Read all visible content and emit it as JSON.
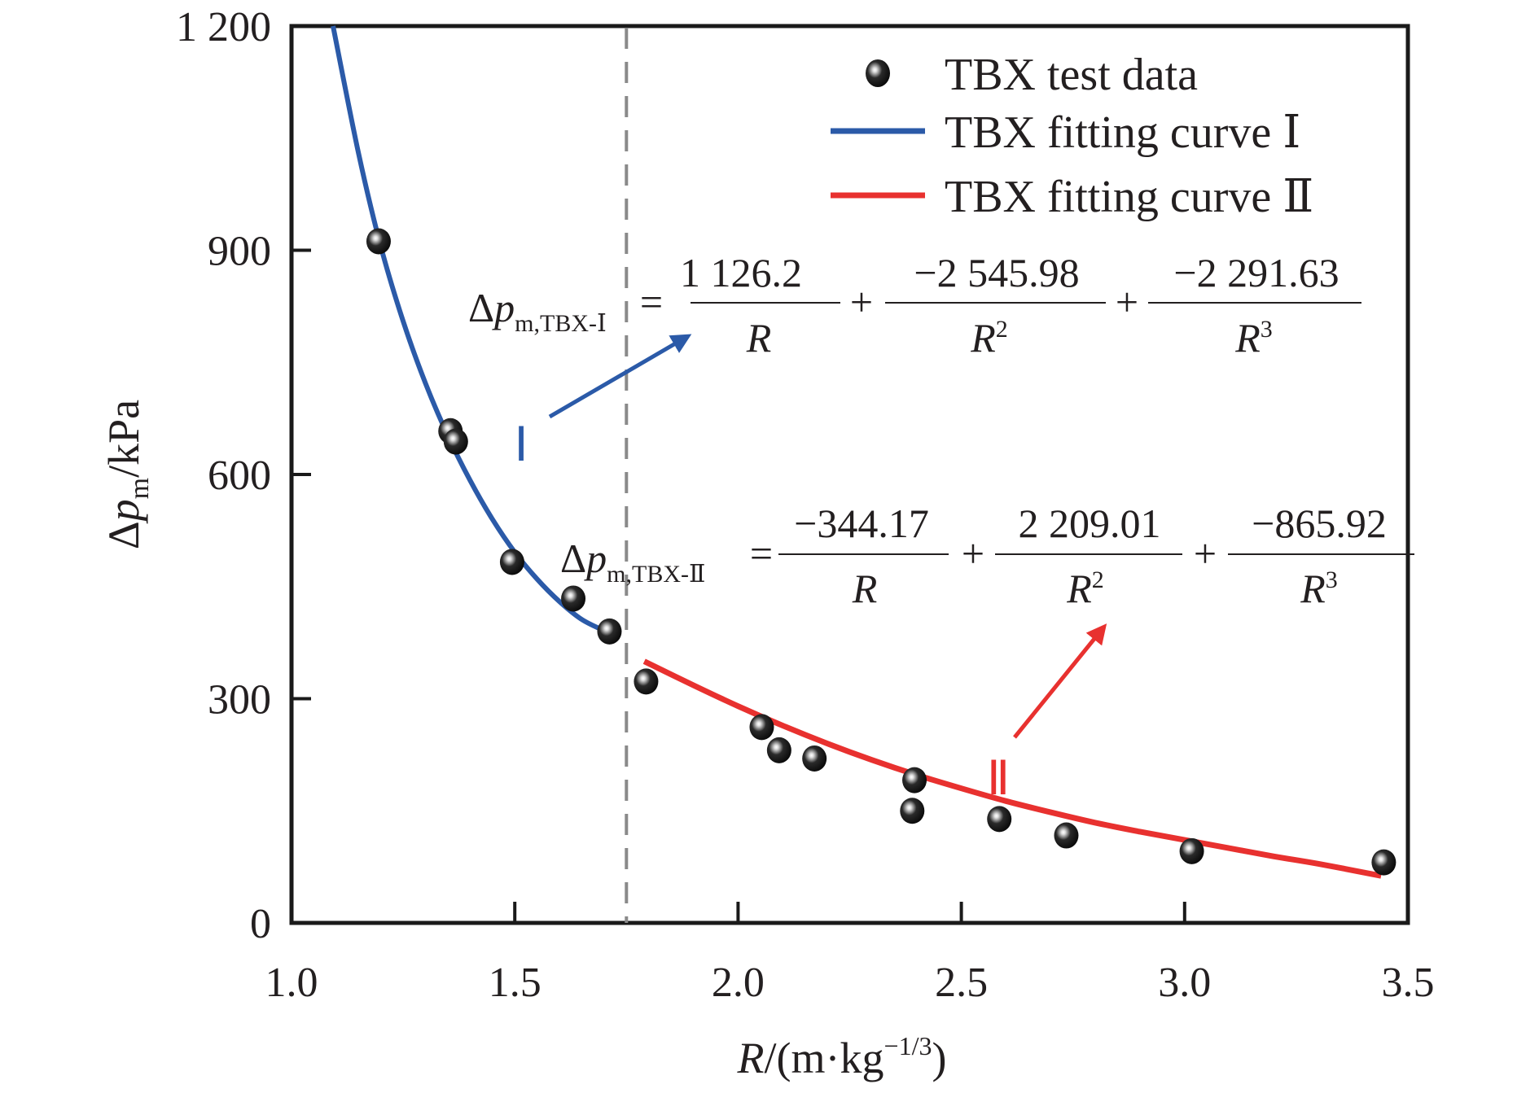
{
  "chart_data": {
    "type": "scatter",
    "title": "",
    "xlabel": "R/(m·kg−1/3)",
    "xlabel_parts": {
      "var": "R",
      "unit_prefix": "/(m·kg",
      "exponent": "−1/3",
      "close": ")"
    },
    "ylabel": "Δp_m/kPa",
    "ylabel_parts": {
      "delta": "Δ",
      "var": "p",
      "sub": "m",
      "unit": "/kPa"
    },
    "xlim": [
      1.0,
      3.5
    ],
    "ylim": [
      0,
      1200
    ],
    "x_ticks": [
      1.0,
      1.5,
      2.0,
      2.5,
      3.0,
      3.5
    ],
    "x_tick_labels": [
      "1.0",
      "1.5",
      "2.0",
      "2.5",
      "3.0",
      "3.5"
    ],
    "y_ticks": [
      0,
      300,
      600,
      900,
      1200
    ],
    "y_tick_labels": [
      "0",
      "300",
      "600",
      "900",
      "1 200"
    ],
    "grid": false,
    "legend_position": "top-right",
    "divider_x": 1.75,
    "series": [
      {
        "name": "TBX test data",
        "kind": "scatter",
        "color": "#111111",
        "points": [
          [
            1.195,
            912
          ],
          [
            1.356,
            658
          ],
          [
            1.368,
            644
          ],
          [
            1.494,
            483
          ],
          [
            1.631,
            434
          ],
          [
            1.712,
            390
          ],
          [
            1.794,
            323
          ],
          [
            2.053,
            262
          ],
          [
            2.092,
            231
          ],
          [
            2.171,
            220
          ],
          [
            2.395,
            191
          ],
          [
            2.39,
            150
          ],
          [
            2.585,
            139
          ],
          [
            2.735,
            117
          ],
          [
            3.016,
            96
          ],
          [
            3.446,
            81
          ]
        ]
      },
      {
        "name": "TBX fitting curve Ⅰ",
        "kind": "line",
        "color": "#2b5aa8",
        "points": [
          [
            1.093,
            1200
          ],
          [
            1.15,
            1030
          ],
          [
            1.2,
            905
          ],
          [
            1.25,
            805
          ],
          [
            1.3,
            722
          ],
          [
            1.35,
            652
          ],
          [
            1.4,
            592
          ],
          [
            1.45,
            540
          ],
          [
            1.5,
            496
          ],
          [
            1.55,
            460
          ],
          [
            1.6,
            430
          ],
          [
            1.65,
            406
          ],
          [
            1.7,
            391
          ],
          [
            1.72,
            385
          ]
        ]
      },
      {
        "name": "TBX fitting curve Ⅱ",
        "kind": "line",
        "color": "#e8312f",
        "points": [
          [
            1.79,
            350
          ],
          [
            1.9,
            318
          ],
          [
            2.0,
            290
          ],
          [
            2.1,
            264
          ],
          [
            2.2,
            240
          ],
          [
            2.3,
            218
          ],
          [
            2.4,
            198
          ],
          [
            2.5,
            180
          ],
          [
            2.6,
            163
          ],
          [
            2.7,
            148
          ],
          [
            2.8,
            134
          ],
          [
            2.9,
            122
          ],
          [
            3.0,
            111
          ],
          [
            3.1,
            100
          ],
          [
            3.2,
            89
          ],
          [
            3.3,
            79
          ],
          [
            3.44,
            63
          ]
        ]
      }
    ],
    "annotations": {
      "region_I_label": "Ⅰ",
      "region_II_label": "Ⅱ",
      "equation_I": {
        "lhs_delta": "Δ",
        "lhs_var": "p",
        "lhs_sub": "m,TBX-Ⅰ",
        "equals": "=",
        "plus": "+",
        "terms": [
          {
            "num": "1 126.2",
            "den_var": "R",
            "den_exp": ""
          },
          {
            "num": "−2 545.98",
            "den_var": "R",
            "den_exp": "2"
          },
          {
            "num": "−2 291.63",
            "den_var": "R",
            "den_exp": "3"
          }
        ]
      },
      "equation_II": {
        "lhs_delta": "Δ",
        "lhs_var": "p",
        "lhs_sub": "m,TBX-Ⅱ",
        "equals": "=",
        "plus": "+",
        "terms": [
          {
            "num": "−344.17",
            "den_var": "R",
            "den_exp": ""
          },
          {
            "num": "2 209.01",
            "den_var": "R",
            "den_exp": "2"
          },
          {
            "num": "−865.92",
            "den_var": "R",
            "den_exp": "3"
          }
        ]
      }
    }
  },
  "legend": {
    "items": [
      {
        "label": "TBX test data",
        "icon": "sphere-marker-icon"
      },
      {
        "label": "TBX fitting curve Ⅰ",
        "icon": "blue-line-icon"
      },
      {
        "label": "TBX fitting curve Ⅱ",
        "icon": "red-line-icon"
      }
    ]
  },
  "colors": {
    "axis": "#1a1a1a",
    "divider": "#8a8a8a",
    "curve_I": "#2b5aa8",
    "curve_II": "#e8312f"
  }
}
